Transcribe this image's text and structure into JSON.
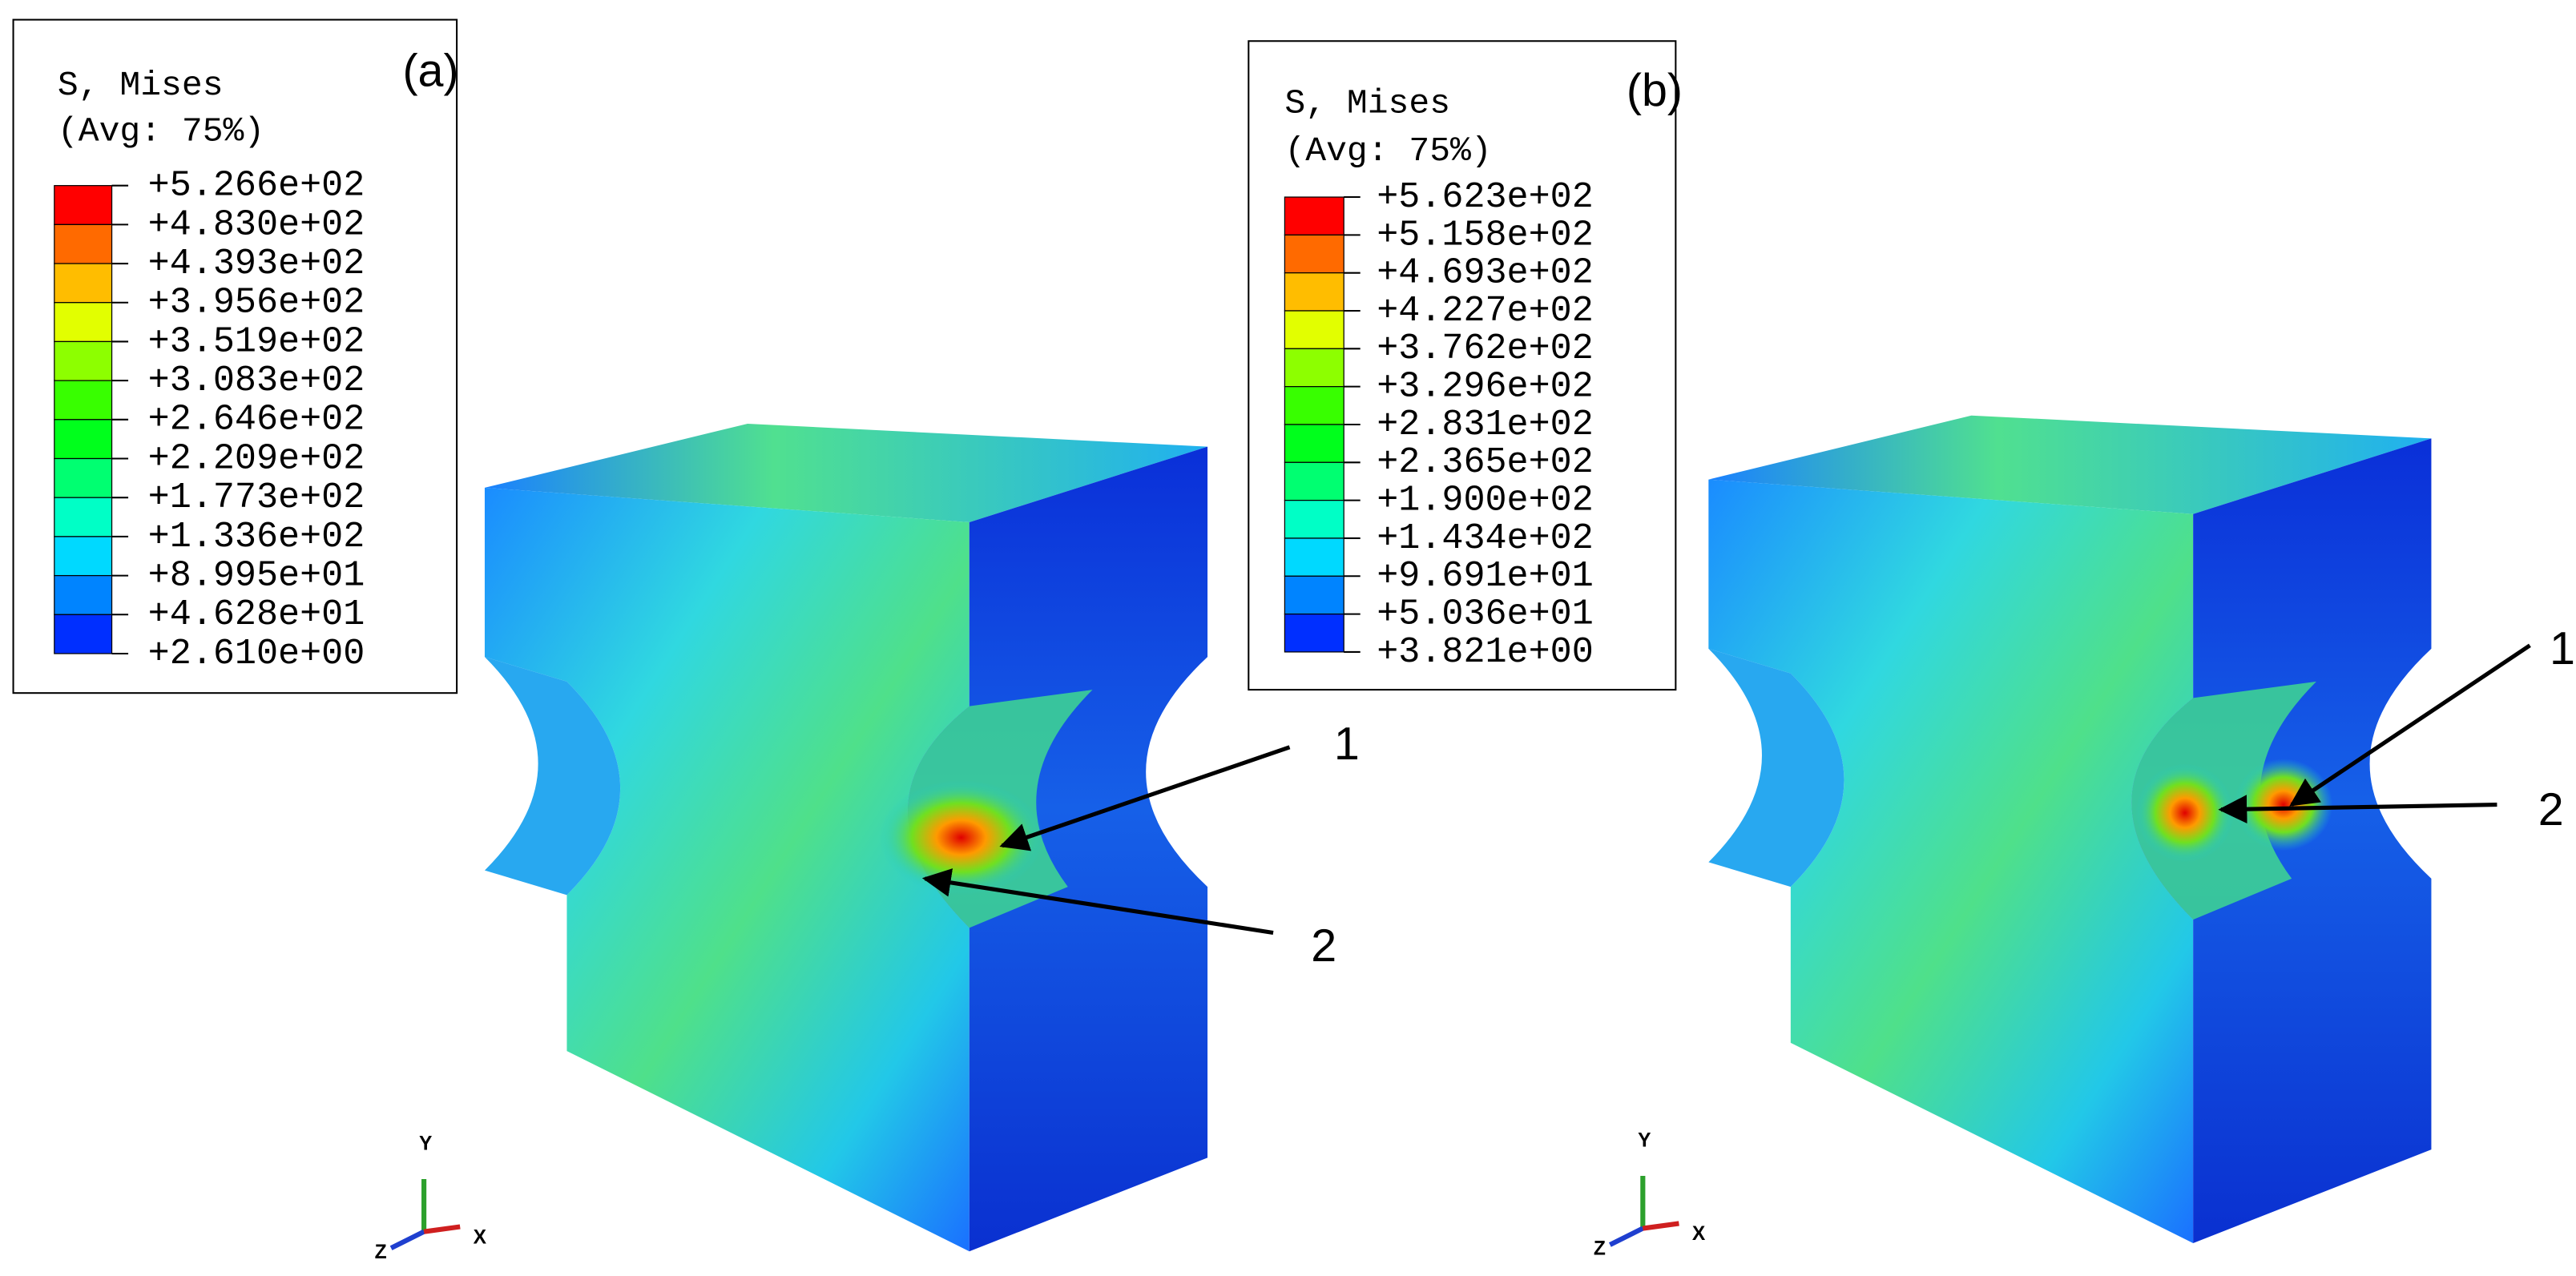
{
  "contour_colors": [
    "#ff0000",
    "#ff6a00",
    "#ffbd00",
    "#e2ff00",
    "#8dff00",
    "#38ff00",
    "#00ff1c",
    "#00ff71",
    "#00ffc6",
    "#00d9ff",
    "#0084ff",
    "#002fff"
  ],
  "panels": [
    {
      "label": "(a)",
      "legend_title": "S, Mises",
      "legend_subtitle": "(Avg: 75%)",
      "legend_values": [
        "+5.266e+02",
        "+4.830e+02",
        "+4.393e+02",
        "+3.956e+02",
        "+3.519e+02",
        "+3.083e+02",
        "+2.646e+02",
        "+2.209e+02",
        "+1.773e+02",
        "+1.336e+02",
        "+8.995e+01",
        "+4.628e+01",
        "+2.610e+00"
      ],
      "annotations": [
        "1",
        "2"
      ],
      "axes": [
        "Y",
        "Z",
        "X"
      ]
    },
    {
      "label": "(b)",
      "legend_title": "S, Mises",
      "legend_subtitle": "(Avg: 75%)",
      "legend_values": [
        "+5.623e+02",
        "+5.158e+02",
        "+4.693e+02",
        "+4.227e+02",
        "+3.762e+02",
        "+3.296e+02",
        "+2.831e+02",
        "+2.365e+02",
        "+1.900e+02",
        "+1.434e+02",
        "+9.691e+01",
        "+5.036e+01",
        "+3.821e+00"
      ],
      "annotations": [
        "1",
        "2"
      ],
      "axes": [
        "Y",
        "Z",
        "X"
      ]
    }
  ]
}
